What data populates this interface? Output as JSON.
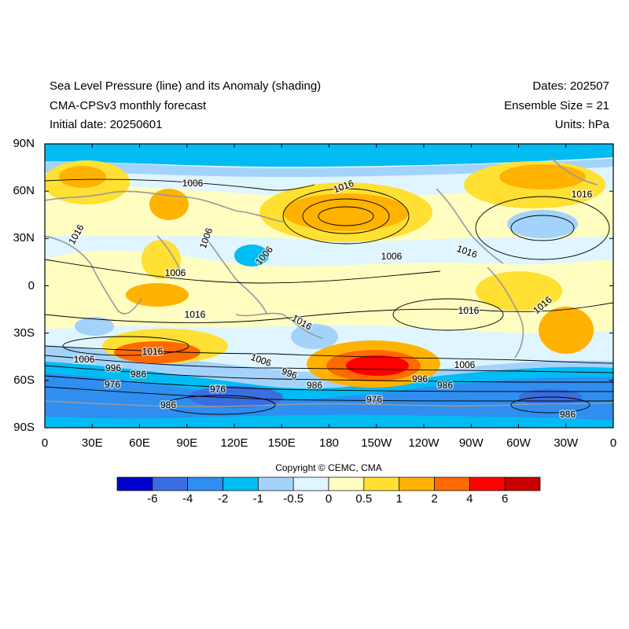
{
  "header": {
    "title_left_1": "Sea Level Pressure (line) and its Anomaly (shading)",
    "title_left_2": "CMA-CPSv3 monthly forecast",
    "title_left_3": "Initial date: 20250601",
    "title_right_1": "Dates: 202507",
    "title_right_2": "Ensemble Size = 21",
    "title_right_3": "Units: hPa"
  },
  "axes": {
    "lat_labels": [
      "90N",
      "60N",
      "30N",
      "0",
      "30S",
      "60S",
      "90S"
    ],
    "lon_labels": [
      "0",
      "30E",
      "60E",
      "90E",
      "120E",
      "150E",
      "180",
      "150W",
      "120W",
      "90W",
      "60W",
      "30W",
      "0"
    ]
  },
  "copyright": "Copyright © CEMC, CMA",
  "colorbar": {
    "colors": [
      "#0000cd",
      "#3a6ee0",
      "#2f8ef0",
      "#00bcf2",
      "#a3d3fb",
      "#dff5ff",
      "#fffdc0",
      "#ffe033",
      "#ffb300",
      "#ff6a00",
      "#ff0000",
      "#c70000"
    ],
    "labels": [
      "-6",
      "-4",
      "-2",
      "-1",
      "-0.5",
      "0",
      "0.5",
      "1",
      "2",
      "4",
      "6"
    ]
  },
  "contour_labels": [
    {
      "text": "1006"
    },
    {
      "text": "1016"
    },
    {
      "text": "1016"
    },
    {
      "text": "1016"
    },
    {
      "text": "1006"
    },
    {
      "text": "1006"
    },
    {
      "text": "1006"
    },
    {
      "text": "1006"
    },
    {
      "text": "1016"
    },
    {
      "text": "1016"
    },
    {
      "text": "1016"
    },
    {
      "text": "1016"
    },
    {
      "text": "1016"
    },
    {
      "text": "1016"
    },
    {
      "text": "1006"
    },
    {
      "text": "996"
    },
    {
      "text": "986"
    },
    {
      "text": "976"
    },
    {
      "text": "976"
    },
    {
      "text": "986"
    },
    {
      "text": "1006"
    },
    {
      "text": "996"
    },
    {
      "text": "986"
    },
    {
      "text": "976"
    },
    {
      "text": "996"
    },
    {
      "text": "986"
    },
    {
      "text": "1006"
    },
    {
      "text": "986"
    }
  ]
}
